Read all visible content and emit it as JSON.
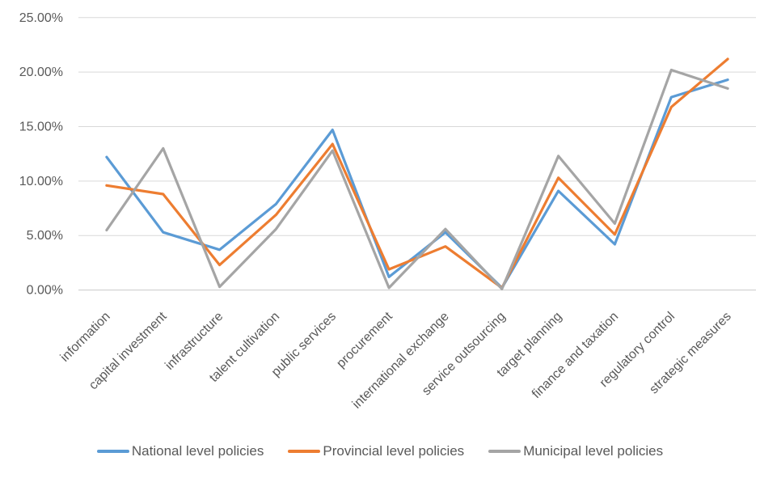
{
  "chart_data": {
    "type": "line",
    "title": "",
    "xlabel": "",
    "ylabel": "",
    "grid": "horizontal",
    "legend_position": "bottom",
    "ylim": [
      0,
      25
    ],
    "ytick_step": 5,
    "ytick_labels": [
      "0.00%",
      "5.00%",
      "10.00%",
      "15.00%",
      "20.00%",
      "25.00%"
    ],
    "categories": [
      "information",
      "capital investment",
      "infrastructure",
      "talent cultivation",
      "public services",
      "procurement",
      "international exchange",
      "service outsourcing",
      "target planning",
      "finance and taxation",
      "regulatory control",
      "strategic measures"
    ],
    "series": [
      {
        "name": "National level policies",
        "color": "#5B9BD5",
        "values": [
          12.2,
          5.3,
          3.7,
          7.9,
          14.7,
          1.2,
          5.3,
          0.2,
          9.1,
          4.2,
          17.7,
          19.3
        ]
      },
      {
        "name": "Provincial level policies",
        "color": "#ED7D31",
        "values": [
          9.6,
          8.8,
          2.3,
          6.9,
          13.4,
          1.9,
          4.0,
          0.2,
          10.3,
          5.1,
          16.8,
          21.2
        ]
      },
      {
        "name": "Municipal level policies",
        "color": "#A5A5A5",
        "values": [
          5.5,
          13.0,
          0.3,
          5.6,
          12.8,
          0.2,
          5.6,
          0.1,
          12.3,
          6.1,
          20.2,
          18.5
        ]
      }
    ]
  },
  "colors": {
    "text": "#595959",
    "gridline": "#D9D9D9",
    "axis_line": "#C9C9C9",
    "background": "#FFFFFF"
  }
}
